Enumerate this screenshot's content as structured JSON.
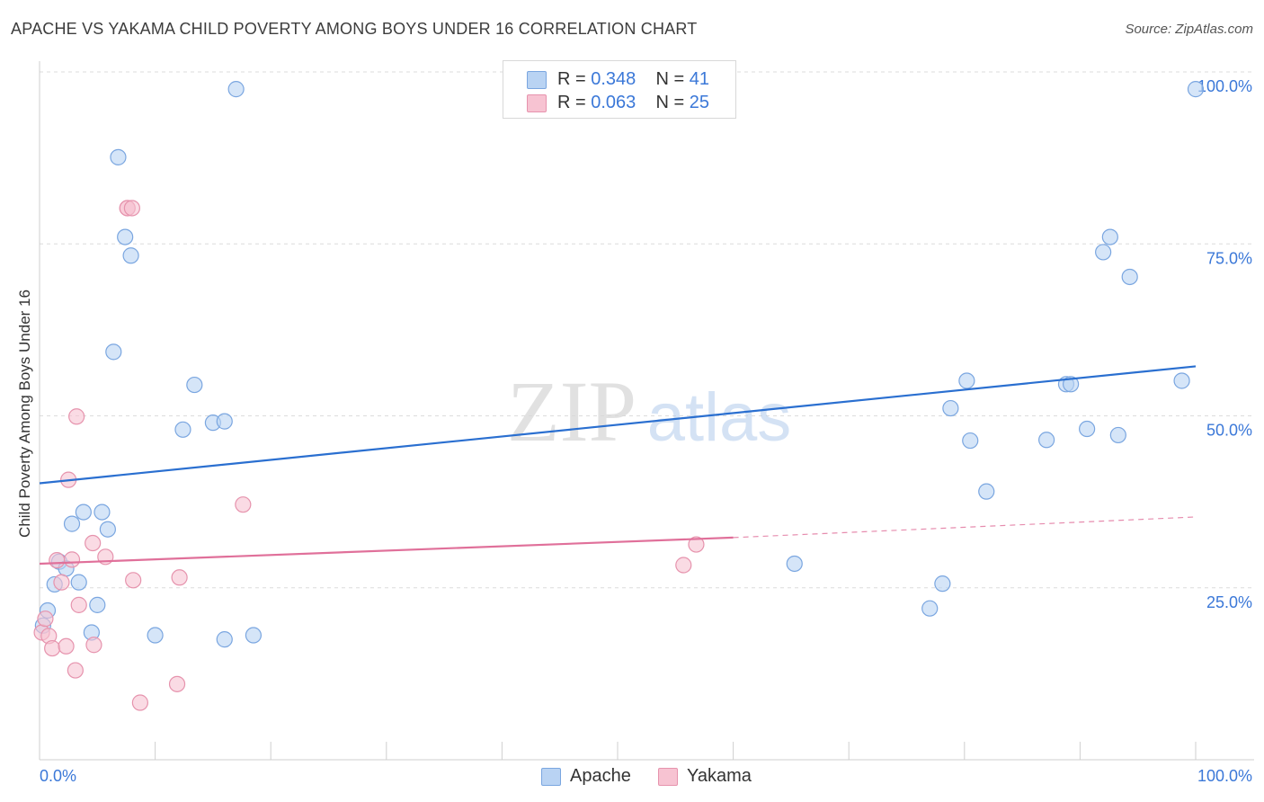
{
  "title": "APACHE VS YAKAMA CHILD POVERTY AMONG BOYS UNDER 16 CORRELATION CHART",
  "source": "Source: ZipAtlas.com",
  "watermark": {
    "zip": "ZIP",
    "atlas": "atlas"
  },
  "legend_top": {
    "rows": [
      {
        "r_label": "R =",
        "r_value": "0.348",
        "n_label": "N =",
        "n_value": "41"
      },
      {
        "r_label": "R =",
        "r_value": "0.063",
        "n_label": "N =",
        "n_value": "25"
      }
    ]
  },
  "legend_bottom": {
    "series1": "Apache",
    "series2": "Yakama"
  },
  "colors": {
    "apache_fill": "#b9d3f3",
    "apache_stroke": "#7aa6e0",
    "apache_line": "#2a6fd0",
    "yakama_fill": "#f7c3d2",
    "yakama_stroke": "#e693ad",
    "yakama_line": "#e0709a",
    "axis_text": "#3b78d8",
    "grid": "#dcdcdc"
  },
  "chart_data": {
    "type": "scatter",
    "title": "APACHE VS YAKAMA CHILD POVERTY AMONG BOYS UNDER 16 CORRELATION CHART",
    "xlabel": "",
    "ylabel": "Child Poverty Among Boys Under 16",
    "xlim": [
      0,
      100
    ],
    "ylim": [
      0,
      100
    ],
    "x_tick_labels": [
      "0.0%",
      "100.0%"
    ],
    "y_ticks": [
      25,
      50,
      75,
      100
    ],
    "y_tick_labels": [
      "25.0%",
      "50.0%",
      "75.0%",
      "100.0%"
    ],
    "grid": true,
    "series": [
      {
        "name": "Apache",
        "r": 0.348,
        "n": 41,
        "trend": {
          "x": [
            0,
            100
          ],
          "y": [
            40.2,
            57.2
          ]
        },
        "points": [
          [
            0.3,
            19.5
          ],
          [
            0.7,
            21.7
          ],
          [
            1.3,
            25.5
          ],
          [
            1.7,
            28.8
          ],
          [
            2.3,
            27.8
          ],
          [
            2.8,
            34.3
          ],
          [
            3.4,
            25.8
          ],
          [
            3.8,
            36.0
          ],
          [
            4.5,
            18.5
          ],
          [
            5.0,
            22.5
          ],
          [
            5.4,
            36.0
          ],
          [
            5.9,
            33.5
          ],
          [
            6.4,
            59.3
          ],
          [
            6.8,
            87.6
          ],
          [
            7.4,
            76.0
          ],
          [
            7.9,
            73.3
          ],
          [
            10.0,
            18.1
          ],
          [
            12.4,
            48.0
          ],
          [
            13.4,
            54.5
          ],
          [
            15.0,
            49.0
          ],
          [
            16.0,
            49.2
          ],
          [
            16.0,
            17.5
          ],
          [
            17.0,
            97.5
          ],
          [
            18.5,
            18.1
          ],
          [
            65.3,
            28.5
          ],
          [
            77.0,
            22.0
          ],
          [
            78.1,
            25.6
          ],
          [
            78.8,
            51.1
          ],
          [
            80.2,
            55.1
          ],
          [
            80.5,
            46.4
          ],
          [
            81.9,
            39.0
          ],
          [
            87.1,
            46.5
          ],
          [
            88.8,
            54.6
          ],
          [
            89.2,
            54.6
          ],
          [
            90.6,
            48.1
          ],
          [
            92.0,
            73.8
          ],
          [
            92.6,
            76.0
          ],
          [
            93.3,
            47.2
          ],
          [
            94.3,
            70.2
          ],
          [
            98.8,
            55.1
          ],
          [
            100.0,
            97.5
          ]
        ]
      },
      {
        "name": "Yakama",
        "r": 0.063,
        "n": 25,
        "trend": {
          "x": [
            0,
            60
          ],
          "y": [
            28.5,
            32.3
          ],
          "dashed_to": {
            "x": 100,
            "y": 35.3
          }
        },
        "points": [
          [
            0.2,
            18.5
          ],
          [
            0.5,
            20.5
          ],
          [
            0.8,
            18.0
          ],
          [
            1.1,
            16.2
          ],
          [
            1.5,
            29.0
          ],
          [
            1.9,
            25.8
          ],
          [
            2.3,
            16.5
          ],
          [
            2.5,
            40.7
          ],
          [
            2.8,
            29.1
          ],
          [
            3.2,
            49.9
          ],
          [
            3.1,
            13.0
          ],
          [
            3.4,
            22.5
          ],
          [
            4.6,
            31.5
          ],
          [
            4.7,
            16.7
          ],
          [
            5.7,
            29.5
          ],
          [
            7.6,
            80.2
          ],
          [
            7.6,
            80.2
          ],
          [
            8.0,
            80.2
          ],
          [
            8.1,
            26.1
          ],
          [
            8.7,
            8.3
          ],
          [
            11.9,
            11.0
          ],
          [
            12.1,
            26.5
          ],
          [
            17.6,
            37.1
          ],
          [
            55.7,
            28.3
          ],
          [
            56.8,
            31.3
          ]
        ]
      }
    ]
  }
}
